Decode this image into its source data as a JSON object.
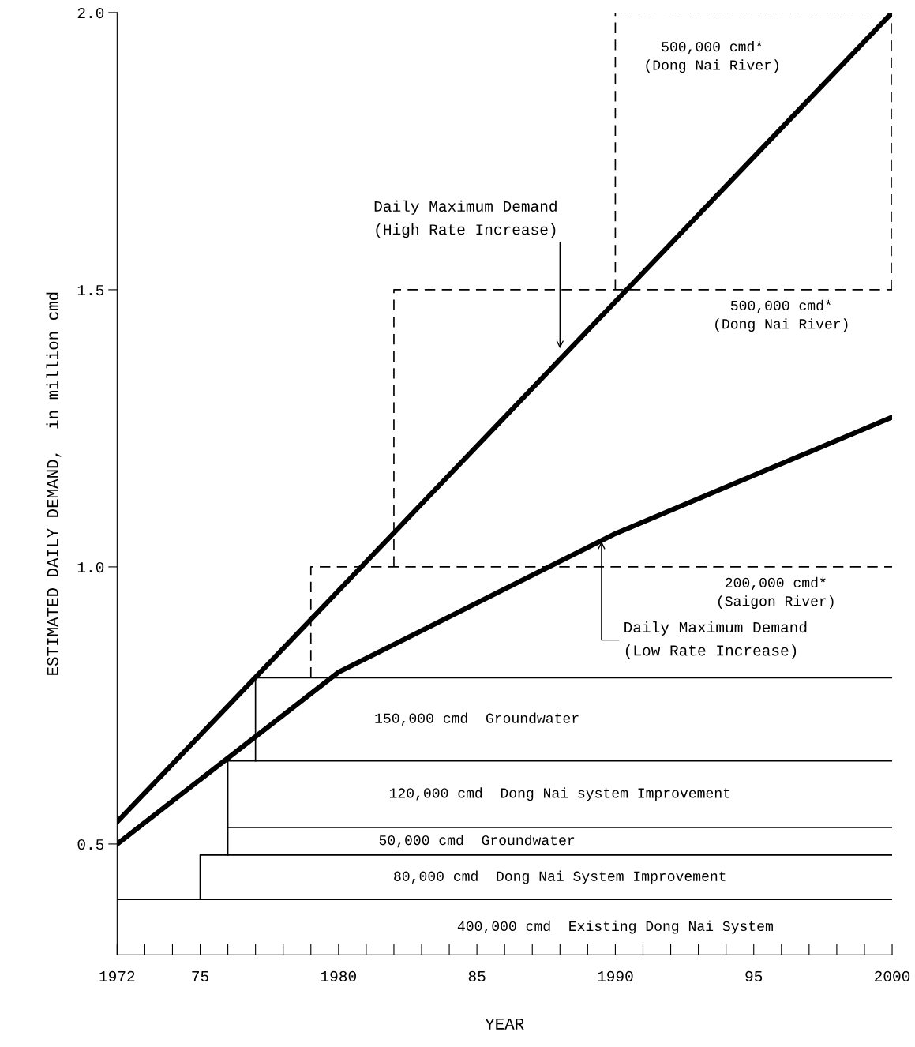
{
  "chart_data": {
    "type": "line",
    "xlabel": "YEAR",
    "ylabel": "ESTIMATED DAILY DEMAND,  in million cmd",
    "xlim": [
      1972,
      2000
    ],
    "ylim": [
      0.3,
      2.0
    ],
    "xticks": [
      1972,
      {
        "value": 1973,
        "label": null
      },
      {
        "value": 1974,
        "label": null
      },
      {
        "value": 1975,
        "label": "75"
      },
      {
        "value": 1976,
        "label": null
      },
      {
        "value": 1977,
        "label": null
      },
      {
        "value": 1978,
        "label": null
      },
      {
        "value": 1979,
        "label": null
      },
      1980,
      {
        "value": 1981,
        "label": null
      },
      {
        "value": 1982,
        "label": null
      },
      {
        "value": 1983,
        "label": null
      },
      {
        "value": 1984,
        "label": null
      },
      {
        "value": 1985,
        "label": "85"
      },
      {
        "value": 1986,
        "label": null
      },
      {
        "value": 1987,
        "label": null
      },
      {
        "value": 1988,
        "label": null
      },
      {
        "value": 1989,
        "label": null
      },
      1990,
      {
        "value": 1991,
        "label": null
      },
      {
        "value": 1992,
        "label": null
      },
      {
        "value": 1993,
        "label": null
      },
      {
        "value": 1994,
        "label": null
      },
      {
        "value": 1995,
        "label": "95"
      },
      {
        "value": 1996,
        "label": null
      },
      {
        "value": 1997,
        "label": null
      },
      {
        "value": 1998,
        "label": null
      },
      {
        "value": 1999,
        "label": null
      },
      2000
    ],
    "yticks": [
      0.5,
      {
        "value": 1,
        "label": "1.0"
      },
      1.5,
      {
        "value": 2,
        "label": "2.0"
      }
    ],
    "grid": false,
    "marker": "none",
    "series": [
      {
        "name": "400,000 cmd  Existing Dong Nai System",
        "line_style": "solid",
        "color": "#000000",
        "x": [
          1972,
          2000
        ],
        "values": [
          0.4,
          0.4
        ]
      },
      {
        "name": "80,000 cmd  Dong Nai System Improvement",
        "line_style": "solid",
        "color": "#000000",
        "x": [
          1975,
          1975,
          2000
        ],
        "values": [
          0.4,
          0.48,
          0.48
        ]
      },
      {
        "name": "50,000 cmd  Groundwater",
        "line_style": "solid",
        "color": "#000000",
        "x": [
          1976,
          1976,
          2000
        ],
        "values": [
          0.48,
          0.53,
          0.53
        ]
      },
      {
        "name": "120,000 cmd  Dong Nai system Improvement",
        "line_style": "solid",
        "color": "#000000",
        "x": [
          1976,
          1976,
          2000
        ],
        "values": [
          0.53,
          0.65,
          0.65
        ]
      },
      {
        "name": "150,000 cmd  Groundwater",
        "line_style": "solid",
        "color": "#000000",
        "x": [
          1977,
          1977,
          2000
        ],
        "values": [
          0.65,
          0.8,
          0.8
        ]
      },
      {
        "name": "200,000 cmd*\n(Saigon River)",
        "line_style": "dashed",
        "color": "#000000",
        "x": [
          1979,
          1979,
          2000
        ],
        "values": [
          0.8,
          1.0,
          1.0
        ]
      },
      {
        "name": "500,000 cmd*\n(Dong Nai River)",
        "line_style": "dashed",
        "color": "#000000",
        "x": [
          1982,
          1982,
          2000
        ],
        "values": [
          1.0,
          1.5,
          1.5
        ]
      },
      {
        "name": "500,000 cmd*\n(Dong Nai River)",
        "line_style": "dashed",
        "color": "#000000",
        "x": [
          1990,
          1990,
          2000,
          2000
        ],
        "values": [
          1.5,
          2.0,
          2.0,
          1.5
        ]
      },
      {
        "line_style": "solid",
        "color": "#000000",
        "x": [
          1972,
          2000
        ],
        "values": [
          0.54,
          2.0
        ]
      },
      {
        "line_style": "solid",
        "color": "#000000",
        "x": [
          1972,
          1980,
          1990,
          2000
        ],
        "values": [
          0.5,
          0.81,
          1.06,
          1.27
        ]
      }
    ],
    "annotations": [
      {
        "text": "Daily Maximum Demand\n(High Rate Increase)",
        "x": 1988,
        "y": 1.39
      },
      {
        "text": "Daily Maximum Demand\n(Low Rate Increase)",
        "x": 1989.5,
        "y": 1.05
      }
    ]
  }
}
